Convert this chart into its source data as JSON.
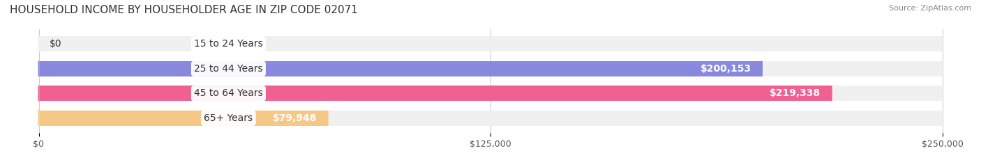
{
  "title": "HOUSEHOLD INCOME BY HOUSEHOLDER AGE IN ZIP CODE 02071",
  "source": "Source: ZipAtlas.com",
  "categories": [
    "15 to 24 Years",
    "25 to 44 Years",
    "45 to 64 Years",
    "65+ Years"
  ],
  "values": [
    0,
    200153,
    219338,
    79948
  ],
  "bar_colors": [
    "#5ECFCF",
    "#8888DD",
    "#F06090",
    "#F5C888"
  ],
  "label_colors": [
    "#333333",
    "#ffffff",
    "#ffffff",
    "#333333"
  ],
  "bar_bg_color": "#f0f0f0",
  "x_max": 250000,
  "x_ticks": [
    0,
    125000,
    250000
  ],
  "x_tick_labels": [
    "$0",
    "$125,000",
    "$250,000"
  ],
  "value_labels": [
    "$0",
    "$200,153",
    "$219,338",
    "$79,948"
  ],
  "background_color": "#ffffff",
  "title_fontsize": 11,
  "bar_height": 0.62,
  "label_fontsize": 10
}
